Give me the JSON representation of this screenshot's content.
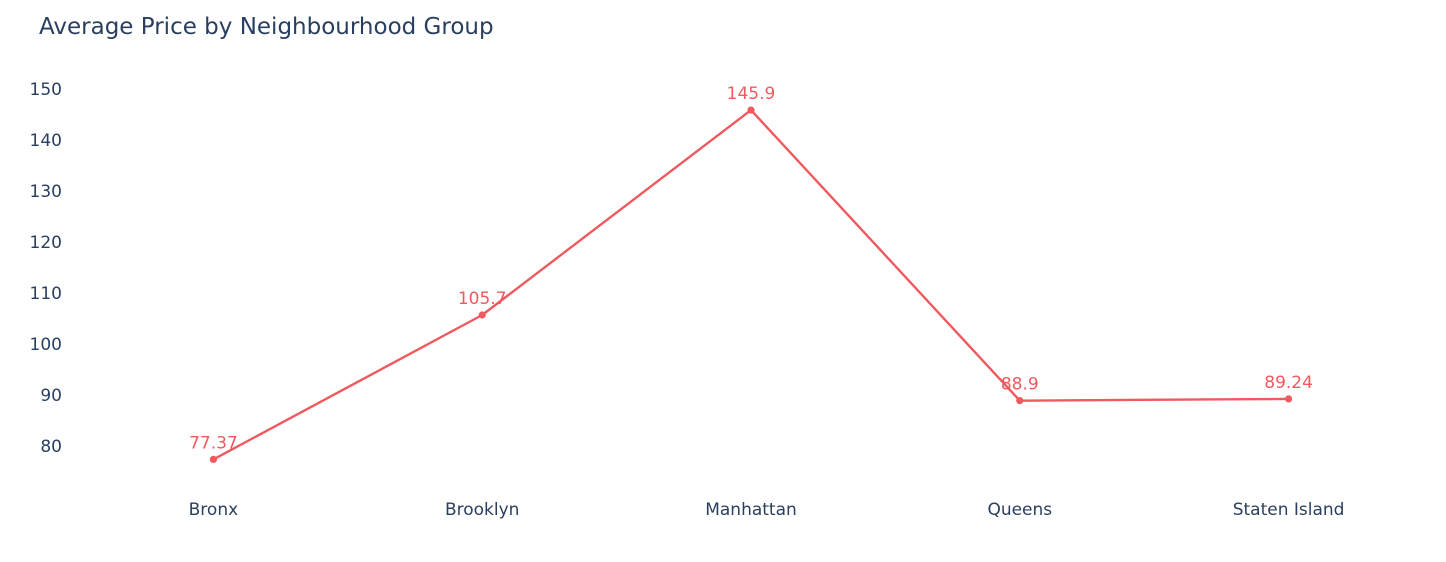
{
  "chart_data": {
    "type": "line",
    "title": "Average Price by Neighbourhood Group",
    "xlabel": "",
    "ylabel": "",
    "categories": [
      "Bronx",
      "Brooklyn",
      "Manhattan",
      "Queens",
      "Staten Island"
    ],
    "series": [
      {
        "values": [
          77.37,
          105.7,
          145.9,
          88.9,
          89.24
        ],
        "labels": [
          "77.37",
          "105.7",
          "145.9",
          "88.9",
          "89.24"
        ],
        "color": "#ef5a5f"
      }
    ],
    "yticks": [
      80,
      90,
      100,
      110,
      120,
      130,
      140,
      150
    ],
    "ylim": [
      72.35,
      150.82
    ],
    "grid": false,
    "legend": "none"
  }
}
